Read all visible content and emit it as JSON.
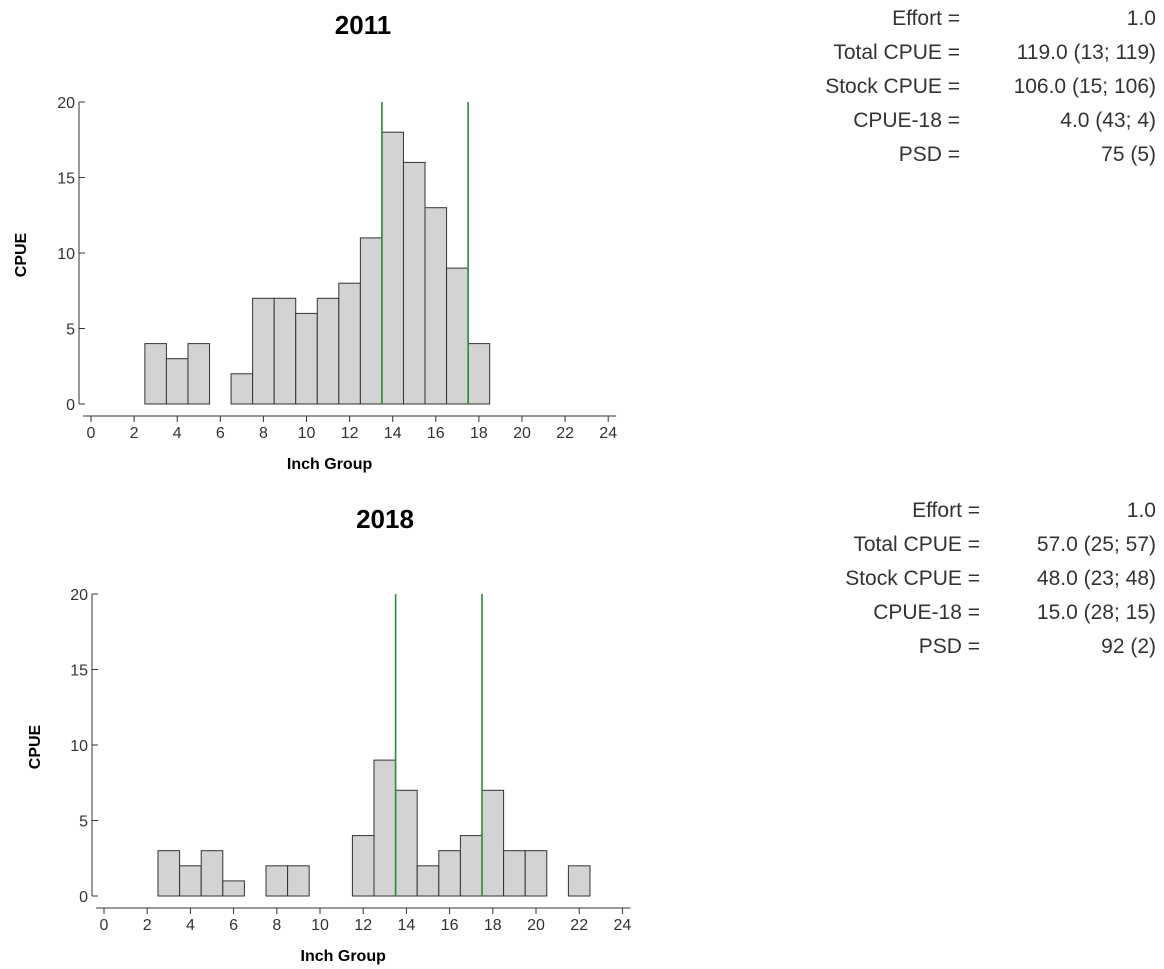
{
  "colors": {
    "bar_fill": "#d3d3d3",
    "bar_stroke": "#333333",
    "reference_line": "#2e8b2e",
    "axis": "#333333"
  },
  "chart_data": [
    {
      "type": "bar",
      "title": "2011",
      "xlabel": "Inch Group",
      "ylabel": "CPUE",
      "xlim": [
        0,
        24
      ],
      "ylim": [
        0,
        20
      ],
      "x_ticks": [
        "0",
        "2",
        "4",
        "6",
        "8",
        "10",
        "12",
        "14",
        "16",
        "18",
        "20",
        "22",
        "24"
      ],
      "y_ticks": [
        "0",
        "5",
        "10",
        "15",
        "20"
      ],
      "grid": false,
      "legend": "none",
      "reference_lines_x": [
        13.5,
        17.5
      ],
      "x": [
        3,
        4,
        5,
        7,
        8,
        9,
        10,
        11,
        12,
        13,
        14,
        15,
        16,
        17,
        18
      ],
      "values": [
        4,
        3,
        4,
        2,
        7,
        7,
        6,
        7,
        8,
        11,
        18,
        16,
        13,
        9,
        4
      ]
    },
    {
      "type": "bar",
      "title": "2018",
      "xlabel": "Inch Group",
      "ylabel": "CPUE",
      "xlim": [
        0,
        24
      ],
      "ylim": [
        0,
        20
      ],
      "x_ticks": [
        "0",
        "2",
        "4",
        "6",
        "8",
        "10",
        "12",
        "14",
        "16",
        "18",
        "20",
        "22",
        "24"
      ],
      "y_ticks": [
        "0",
        "5",
        "10",
        "15",
        "20"
      ],
      "grid": false,
      "legend": "none",
      "reference_lines_x": [
        13.5,
        17.5
      ],
      "x": [
        3,
        4,
        5,
        6,
        8,
        9,
        12,
        13,
        14,
        15,
        16,
        17,
        18,
        19,
        20,
        22
      ],
      "values": [
        3,
        2,
        3,
        1,
        2,
        2,
        4,
        9,
        7,
        2,
        3,
        4,
        7,
        3,
        3,
        2
      ]
    }
  ],
  "stats": [
    {
      "rows": [
        {
          "label": "Effort =",
          "value": "1.0"
        },
        {
          "label": "Total CPUE =",
          "value": "119.0 (13; 119)"
        },
        {
          "label": "Stock CPUE =",
          "value": "106.0 (15; 106)"
        },
        {
          "label": "CPUE-18 =",
          "value": "4.0 (43; 4)"
        },
        {
          "label": "PSD =",
          "value": "75 (5)"
        }
      ]
    },
    {
      "rows": [
        {
          "label": "Effort =",
          "value": "1.0"
        },
        {
          "label": "Total CPUE =",
          "value": "57.0 (25; 57)"
        },
        {
          "label": "Stock CPUE =",
          "value": "48.0 (23; 48)"
        },
        {
          "label": "CPUE-18 =",
          "value": "15.0 (28; 15)"
        },
        {
          "label": "PSD =",
          "value": "92 (2)"
        }
      ]
    }
  ]
}
